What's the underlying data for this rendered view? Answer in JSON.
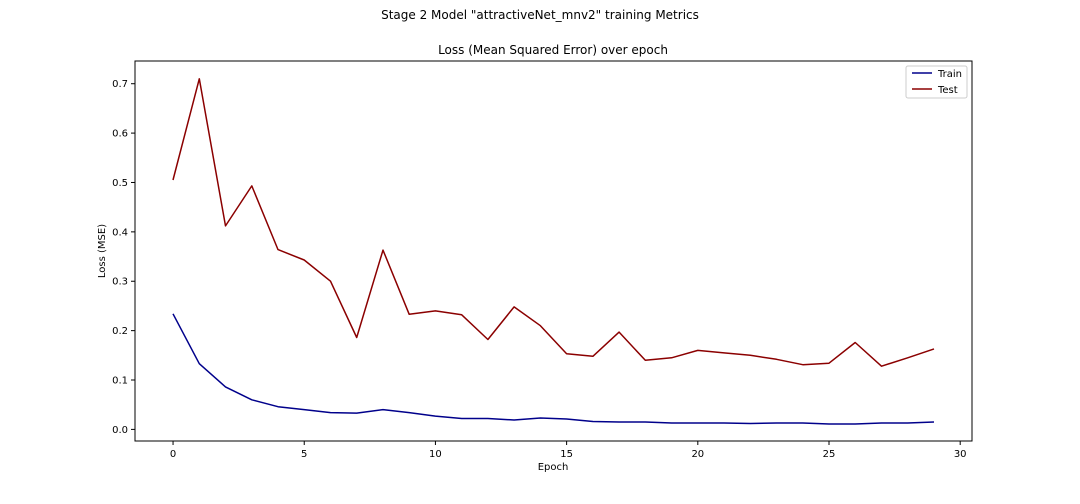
{
  "figure": {
    "suptitle": "Stage 2 Model \"attractiveNet_mnv2\" training Metrics"
  },
  "chart_data": {
    "type": "line",
    "title": "Loss (Mean Squared Error) over epoch",
    "xlabel": "Epoch",
    "ylabel": "Loss (MSE)",
    "xlim": [
      -1.45,
      30.45
    ],
    "ylim": [
      -0.0235,
      0.746
    ],
    "xticks": [
      0,
      5,
      10,
      15,
      20,
      25,
      30
    ],
    "yticks": [
      0.0,
      0.1,
      0.2,
      0.3,
      0.4,
      0.5,
      0.6,
      0.7
    ],
    "x": [
      0,
      1,
      2,
      3,
      4,
      5,
      6,
      7,
      8,
      9,
      10,
      11,
      12,
      13,
      14,
      15,
      16,
      17,
      18,
      19,
      20,
      21,
      22,
      23,
      24,
      25,
      26,
      27,
      28,
      29
    ],
    "series": [
      {
        "name": "Train",
        "color": "#00008b",
        "values": [
          0.234,
          0.133,
          0.086,
          0.06,
          0.046,
          0.04,
          0.034,
          0.033,
          0.04,
          0.034,
          0.027,
          0.022,
          0.022,
          0.019,
          0.023,
          0.021,
          0.016,
          0.015,
          0.015,
          0.013,
          0.013,
          0.013,
          0.012,
          0.013,
          0.013,
          0.011,
          0.011,
          0.013,
          0.013,
          0.015
        ]
      },
      {
        "name": "Test",
        "color": "#8b0000",
        "values": [
          0.505,
          0.71,
          0.412,
          0.493,
          0.364,
          0.343,
          0.3,
          0.186,
          0.363,
          0.233,
          0.24,
          0.232,
          0.182,
          0.248,
          0.21,
          0.153,
          0.148,
          0.197,
          0.14,
          0.145,
          0.16,
          0.155,
          0.15,
          0.142,
          0.131,
          0.134,
          0.176,
          0.128,
          0.145,
          0.163
        ]
      }
    ],
    "grid": false,
    "legend_position": "top-right"
  }
}
